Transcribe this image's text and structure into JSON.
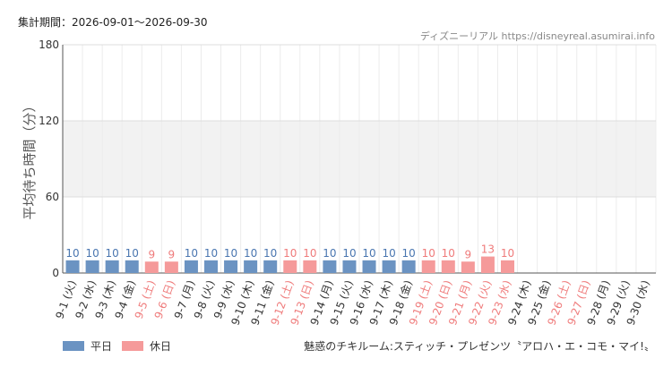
{
  "header": {
    "period_label": "集計期間：2026-09-01～2026-09-30",
    "credit": "ディズニーリアル https://disneyreal.asumirai.info"
  },
  "colors": {
    "weekday": "#6b93c2",
    "holiday": "#f59a9a",
    "weekday_label": "#4a76b0",
    "holiday_label": "#ef7b7b",
    "band": "#f2f2f2",
    "grid": "#dddddd"
  },
  "legend": {
    "weekday": "平日",
    "holiday": "休日"
  },
  "footer": {
    "attraction_name": "魅惑のチキルーム:スティッチ・プレゼンツ〝アロハ・エ・コモ・マイ!〟"
  },
  "chart_data": {
    "type": "bar",
    "ylabel": "平均待ち時間（分）",
    "ylim": [
      0,
      180
    ],
    "yticks": [
      0,
      60,
      120,
      180
    ],
    "shaded_band": [
      60,
      120
    ],
    "categories": [
      "9-1 (火)",
      "9-2 (水)",
      "9-3 (木)",
      "9-4 (金)",
      "9-5 (土)",
      "9-6 (日)",
      "9-7 (月)",
      "9-8 (火)",
      "9-9 (水)",
      "9-10 (木)",
      "9-11 (金)",
      "9-12 (土)",
      "9-13 (日)",
      "9-14 (月)",
      "9-15 (火)",
      "9-16 (水)",
      "9-17 (木)",
      "9-18 (金)",
      "9-19 (土)",
      "9-20 (日)",
      "9-21 (月)",
      "9-22 (火)",
      "9-23 (水)",
      "9-24 (木)",
      "9-25 (金)",
      "9-26 (土)",
      "9-27 (日)",
      "9-28 (月)",
      "9-29 (火)",
      "9-30 (水)"
    ],
    "values": [
      10,
      10,
      10,
      10,
      9,
      9,
      10,
      10,
      10,
      10,
      10,
      10,
      10,
      10,
      10,
      10,
      10,
      10,
      10,
      10,
      9,
      13,
      10,
      null,
      null,
      null,
      null,
      null,
      null,
      null
    ],
    "day_type": [
      "weekday",
      "weekday",
      "weekday",
      "weekday",
      "holiday",
      "holiday",
      "weekday",
      "weekday",
      "weekday",
      "weekday",
      "weekday",
      "holiday",
      "holiday",
      "weekday",
      "weekday",
      "weekday",
      "weekday",
      "weekday",
      "holiday",
      "holiday",
      "holiday",
      "holiday",
      "holiday",
      "weekday",
      "weekday",
      "holiday",
      "holiday",
      "weekday",
      "weekday",
      "weekday"
    ]
  }
}
